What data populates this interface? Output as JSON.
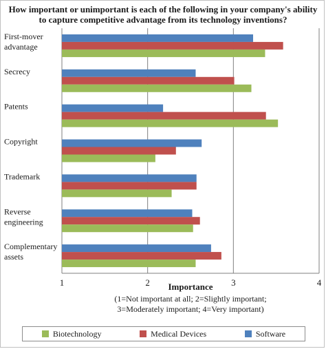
{
  "chart_data": {
    "type": "bar",
    "orientation": "horizontal",
    "title": "How important or unimportant is each of the following in your company's ability to capture competitive advantage from its technology inventions?",
    "xlabel": "Importance",
    "xlabel_note": [
      "(1=Not important at all; 2=Slightly important;",
      "3=Moderately important; 4=Very important)"
    ],
    "xlim": [
      1,
      4
    ],
    "xticks": [
      "1",
      "2",
      "3",
      "4"
    ],
    "grid": "vertical major",
    "legend_position": "bottom",
    "categories": [
      [
        "First-mover",
        "advantage"
      ],
      [
        "Secrecy"
      ],
      [
        "Patents"
      ],
      [
        "Copyright"
      ],
      [
        "Trademark"
      ],
      [
        "Reverse",
        "engineering"
      ],
      [
        "Complementary",
        "assets"
      ]
    ],
    "series": [
      {
        "name": "Software",
        "color": "#4f81bd",
        "values": [
          3.23,
          2.56,
          2.18,
          2.63,
          2.57,
          2.52,
          2.74
        ]
      },
      {
        "name": "Medical Devices",
        "color": "#c0504d",
        "values": [
          3.58,
          3.01,
          3.38,
          2.33,
          2.57,
          2.61,
          2.86
        ]
      },
      {
        "name": "Biotechnology",
        "color": "#9bbb59",
        "values": [
          3.37,
          3.21,
          3.52,
          2.09,
          2.28,
          2.53,
          2.56
        ]
      }
    ],
    "legend_order": [
      "Biotechnology",
      "Medical Devices",
      "Software"
    ]
  }
}
